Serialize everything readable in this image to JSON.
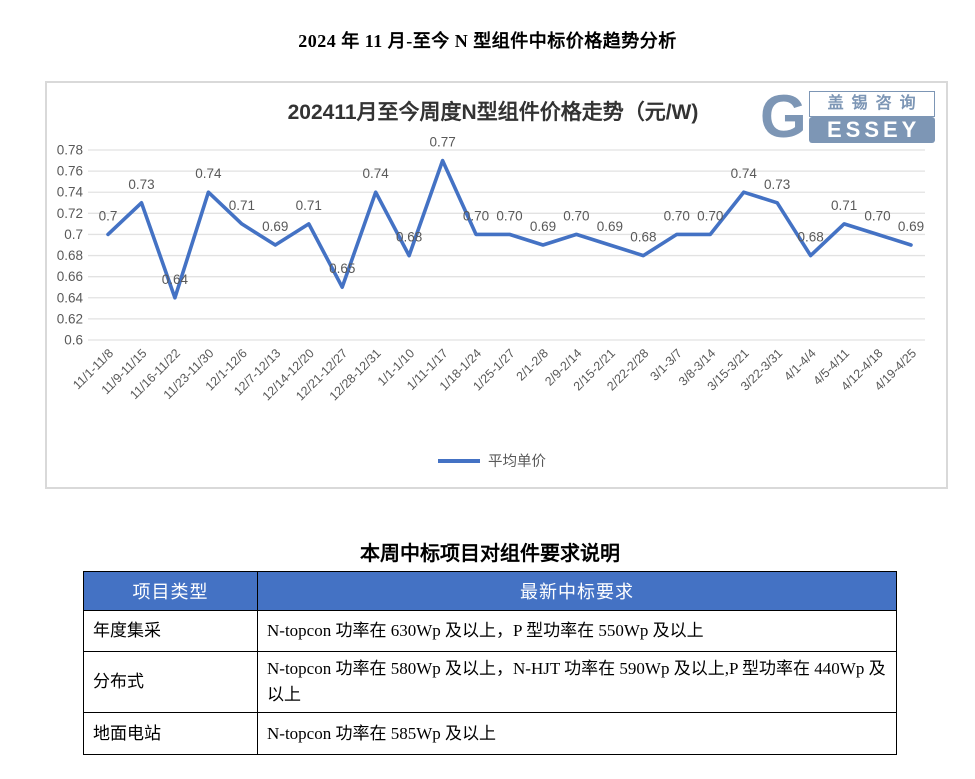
{
  "page": {
    "main_title": "2024 年 11 月-至今 N 型组件中标价格趋势分析"
  },
  "logo": {
    "letter": "G",
    "cn": "盖锡咨询",
    "en": "ESSEY",
    "color": "#7D96B5"
  },
  "chart_data": {
    "type": "line",
    "title": "202411月至今周度N型组件价格走势（元/W)",
    "categories": [
      "11/1-11/8",
      "11/9-11/15",
      "11/16-11/22",
      "11/23-11/30",
      "12/1-12/6",
      "12/7-12/13",
      "12/14-12/20",
      "12/21-12/27",
      "12/28-12/31",
      "1/1-1/10",
      "1/11-1/17",
      "1/18-1/24",
      "1/25-1/27",
      "2/1-2/8",
      "2/9-2/14",
      "2/15-2/21",
      "2/22-2/28",
      "3/1-3/7",
      "3/8-3/14",
      "3/15-3/21",
      "3/22-3/31",
      "4/1-4/4",
      "4/5-4/11",
      "4/12-4/18",
      "4/19-4/25"
    ],
    "series": [
      {
        "name": "平均单价",
        "values": [
          0.7,
          0.73,
          0.64,
          0.74,
          0.71,
          0.69,
          0.71,
          0.65,
          0.74,
          0.68,
          0.77,
          0.7,
          0.7,
          0.69,
          0.7,
          0.69,
          0.68,
          0.7,
          0.7,
          0.74,
          0.73,
          0.68,
          0.71,
          0.7,
          0.69
        ],
        "labels": [
          "0.7",
          "0.73",
          "0.64",
          "0.74",
          "0.71",
          "0.69",
          "0.71",
          "0.65",
          "0.74",
          "0.68",
          "0.77",
          "0.70",
          "0.70",
          "0.69",
          "0.70",
          "0.69",
          "0.68",
          "0.70",
          "0.70",
          "0.74",
          "0.73",
          "0.68",
          "0.71",
          "0.70",
          "0.69"
        ]
      }
    ],
    "yticks": [
      "0.78",
      "0.76",
      "0.74",
      "0.72",
      "0.7",
      "0.68",
      "0.66",
      "0.64",
      "0.62",
      "0.6"
    ],
    "ylim": [
      0.6,
      0.78
    ],
    "xlabel": "",
    "ylabel": "",
    "grid": true,
    "legend_position": "bottom",
    "line_color": "#4472C4",
    "label_color": "#595959",
    "grid_color": "#E2E2E2",
    "title_color": "#333333"
  },
  "table": {
    "title": "本周中标项目对组件要求说明",
    "headers": [
      "项目类型",
      "最新中标要求"
    ],
    "header_bg": "#4472C4",
    "rows": [
      {
        "type": "年度集采",
        "requirement": "N-topcon 功率在 630Wp 及以上，P 型功率在 550Wp 及以上"
      },
      {
        "type": "分布式",
        "requirement": "N-topcon 功率在 580Wp 及以上，N-HJT 功率在 590Wp 及以上,P 型功率在 440Wp 及以上"
      },
      {
        "type": "地面电站",
        "requirement": "N-topcon 功率在 585Wp 及以上"
      }
    ]
  }
}
